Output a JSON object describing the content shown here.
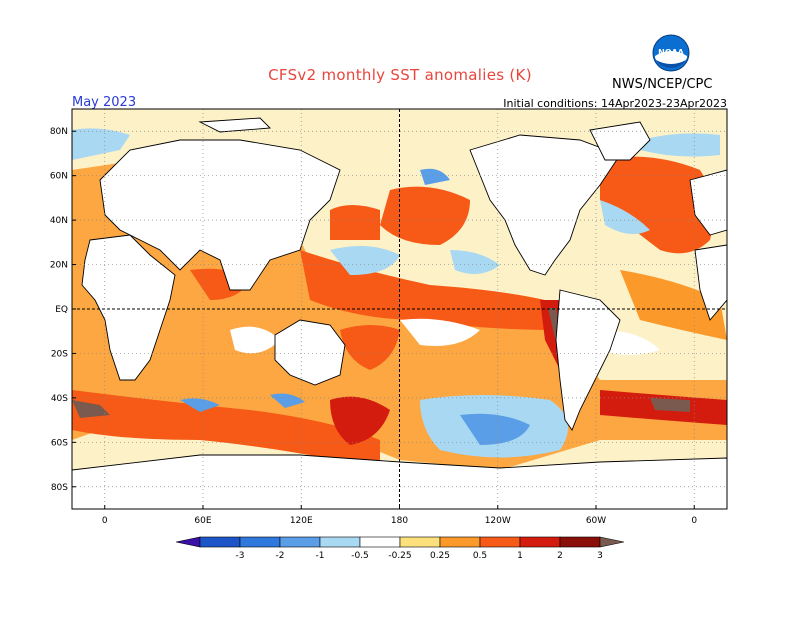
{
  "header": {
    "title": "CFSv2 monthly SST anomalies (K)",
    "agency": "NWS/NCEP/CPC",
    "month": "May 2023",
    "initial_conditions": "Initial conditions: 14Apr2023-23Apr2023",
    "logo_text": "NOAA"
  },
  "map": {
    "lat_labels": [
      "80N",
      "60N",
      "40N",
      "20N",
      "EQ",
      "20S",
      "40S",
      "60S",
      "80S"
    ],
    "lon_labels": [
      "0",
      "60E",
      "120E",
      "180",
      "120W",
      "60W",
      "0"
    ],
    "lon_ticks": [
      0,
      60,
      120,
      180,
      240,
      300,
      360
    ],
    "lat_ticks": [
      80,
      60,
      40,
      20,
      0,
      -20,
      -40,
      -60,
      -80
    ],
    "lon_range": [
      -20,
      380
    ],
    "lat_range": [
      -90,
      90
    ]
  },
  "colorbar": {
    "labels": [
      "-3",
      "-2",
      "-1",
      "-0.5",
      "-0.25",
      "0.25",
      "0.5",
      "1",
      "2",
      "3"
    ],
    "colors": [
      "#3a10a8",
      "#1c55c8",
      "#2f79de",
      "#5a9ee8",
      "#a9d8f2",
      "#ffffff",
      "#fbe07c",
      "#fb9a2a",
      "#f65a16",
      "#d41c0e",
      "#8a0f08",
      "#7a5a4e"
    ]
  },
  "colors": {
    "land": "#ffffff",
    "coast": "#000000",
    "grid": "#888888",
    "title": "#e8453c",
    "month": "#2a3bd6"
  }
}
